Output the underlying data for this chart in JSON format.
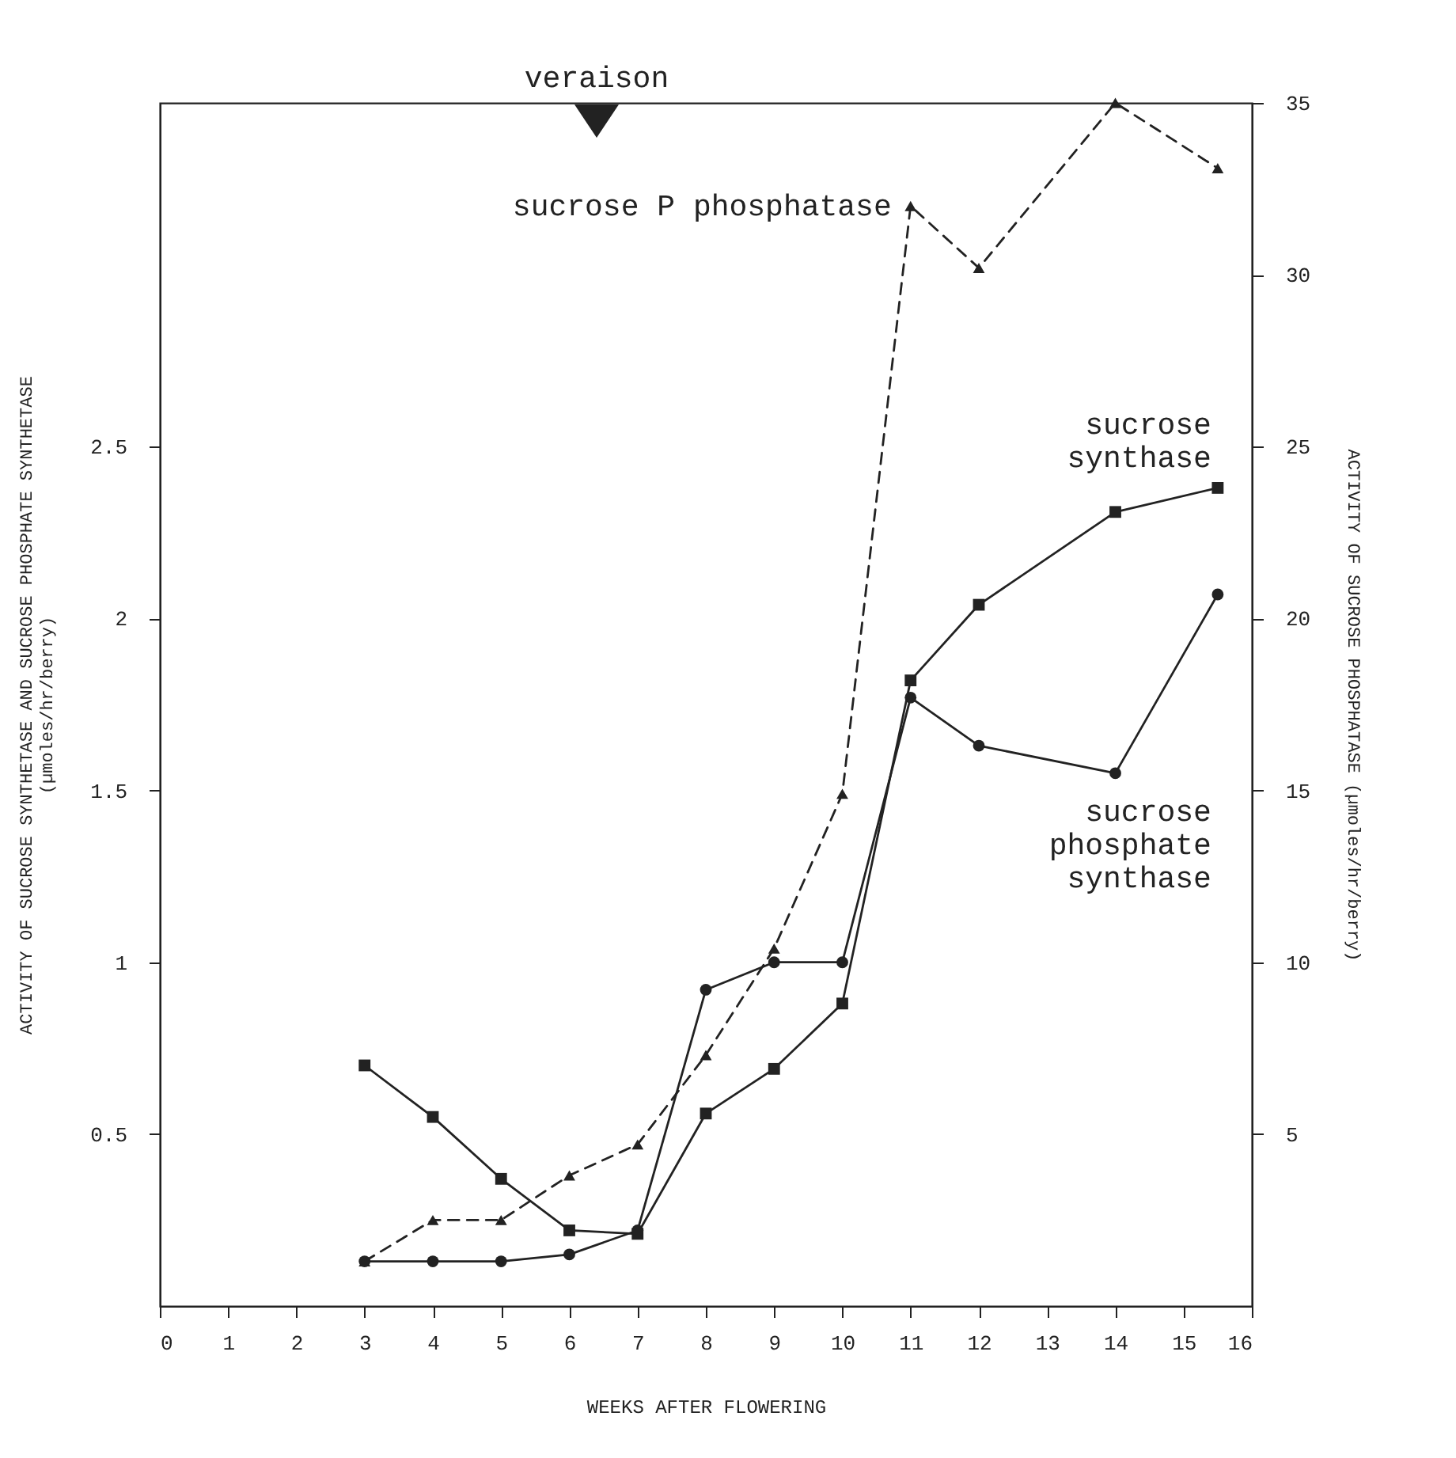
{
  "chart_data": {
    "type": "line",
    "xlabel": "WEEKS AFTER FLOWERING",
    "ylabel": "ACTIVITY OF SUCROSE SYNTHETASE AND SUCROSE PHOSPHATE SYNTHETASE\n(µmoles/hr/berry)",
    "y2label": "ACTIVITY OF SUCROSE PHOSPHATASE (µmoles/hr/berry)",
    "x": [
      3,
      4,
      5,
      6,
      7,
      8,
      9,
      10,
      11,
      12,
      14,
      15.5
    ],
    "series": [
      {
        "name": "sucrose synthase",
        "color": "#222222",
        "marker": "square",
        "line_style": "solid",
        "values": [
          0.7,
          0.55,
          0.37,
          0.22,
          0.21,
          0.56,
          0.69,
          0.88,
          1.82,
          2.04,
          2.31,
          2.38
        ]
      },
      {
        "name": "sucrose phosphate synthase",
        "color": "#222222",
        "marker": "circle",
        "line_style": "solid",
        "values": [
          0.13,
          0.13,
          0.13,
          0.15,
          0.22,
          0.92,
          1.0,
          1.0,
          1.77,
          1.63,
          1.55,
          2.07
        ]
      },
      {
        "name": "sucrose P phosphatase",
        "color": "#222222",
        "marker": "triangle",
        "line_style": "dashed",
        "axis": "y2",
        "values": [
          1.3,
          2.5,
          2.5,
          3.8,
          4.7,
          7.3,
          10.4,
          14.9,
          32,
          30.2,
          35,
          33.1
        ]
      }
    ],
    "xlim": [
      0,
      16
    ],
    "xticks": [
      0,
      1,
      2,
      3,
      4,
      5,
      6,
      7,
      8,
      9,
      10,
      11,
      12,
      13,
      14,
      15,
      16
    ],
    "ylim": [
      0,
      3.5
    ],
    "yticks": [
      0.5,
      1.0,
      1.5,
      2.0,
      2.5
    ],
    "y2lim": [
      0,
      35
    ],
    "y2ticks": [
      5,
      10,
      15,
      20,
      25,
      30,
      35
    ],
    "annotations": [
      "veraison"
    ],
    "grid": false
  }
}
